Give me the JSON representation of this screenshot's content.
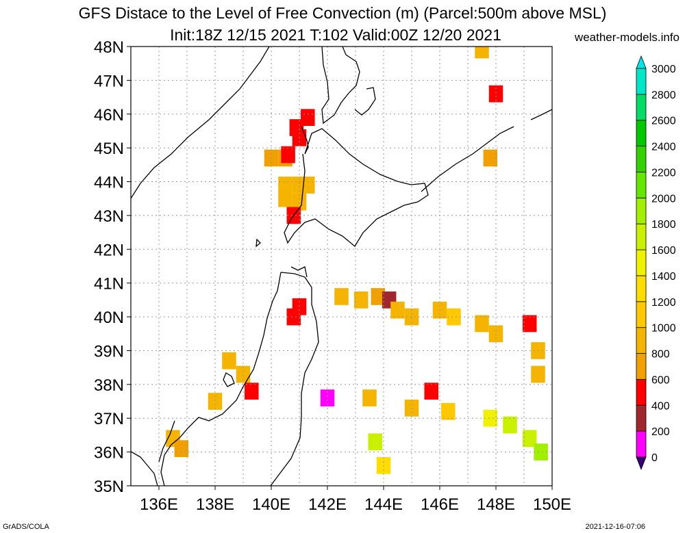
{
  "map": {
    "title_line1": "GFS Distace to the Level of Free Convection (m) (Parcel:500m above MSL)",
    "title_line2": "Init:18Z 12/15 2021 T:102 Valid:00Z 12/20 2021",
    "credit": "weather-models.info",
    "footer_left": "GrADS/COLA",
    "footer_right": "2021-12-16-07:06",
    "region": "Northern Japan / Hokkaido / Sakhalin",
    "projection": "lat-lon",
    "lon_range": [
      135,
      150
    ],
    "lat_range": [
      35,
      48
    ],
    "lon_ticks": [
      "136E",
      "138E",
      "140E",
      "142E",
      "144E",
      "146E",
      "148E",
      "150E"
    ],
    "lat_ticks": [
      "35N",
      "36N",
      "37N",
      "38N",
      "39N",
      "40N",
      "41N",
      "42N",
      "43N",
      "44N",
      "45N",
      "46N",
      "47N",
      "48N"
    ]
  },
  "colorbar": {
    "labels": [
      "0",
      "200",
      "400",
      "600",
      "800",
      "1000",
      "1200",
      "1400",
      "1600",
      "1800",
      "2000",
      "2200",
      "2400",
      "2600",
      "2800",
      "3000"
    ],
    "colors": [
      "#3a0070",
      "#ff00ff",
      "#a0282d",
      "#ff0000",
      "#f0a000",
      "#f5b400",
      "#ffc800",
      "#ffdc00",
      "#f0f000",
      "#c8f000",
      "#a0f000",
      "#64e600",
      "#32d200",
      "#00c800",
      "#00dc64",
      "#00e6c8",
      "#00e6e6"
    ]
  },
  "chart_data": {
    "type": "heatmap",
    "variable": "Distace to the Level of Free Convection (m)",
    "units": "m",
    "cells": [
      {
        "lon": 140.0,
        "lat": 44.7,
        "v": 700
      },
      {
        "lon": 140.5,
        "lat": 44.7,
        "v": 650
      },
      {
        "lon": 140.6,
        "lat": 44.8,
        "v": 500
      },
      {
        "lon": 140.5,
        "lat": 43.9,
        "v": 900
      },
      {
        "lon": 141.0,
        "lat": 43.9,
        "v": 900
      },
      {
        "lon": 141.3,
        "lat": 43.9,
        "v": 850
      },
      {
        "lon": 140.5,
        "lat": 43.5,
        "v": 900
      },
      {
        "lon": 141.0,
        "lat": 43.4,
        "v": 850
      },
      {
        "lon": 140.8,
        "lat": 43.0,
        "v": 500
      },
      {
        "lon": 141.0,
        "lat": 45.3,
        "v": 400
      },
      {
        "lon": 140.9,
        "lat": 45.6,
        "v": 450
      },
      {
        "lon": 141.3,
        "lat": 45.9,
        "v": 550
      },
      {
        "lon": 141.0,
        "lat": 40.3,
        "v": 400
      },
      {
        "lon": 140.8,
        "lat": 40.0,
        "v": 450
      },
      {
        "lon": 142.5,
        "lat": 40.6,
        "v": 900
      },
      {
        "lon": 143.2,
        "lat": 40.5,
        "v": 900
      },
      {
        "lon": 143.8,
        "lat": 40.6,
        "v": 700
      },
      {
        "lon": 144.2,
        "lat": 40.5,
        "v": 300
      },
      {
        "lon": 144.5,
        "lat": 40.2,
        "v": 900
      },
      {
        "lon": 145.0,
        "lat": 40.0,
        "v": 850
      },
      {
        "lon": 146.0,
        "lat": 40.2,
        "v": 950
      },
      {
        "lon": 146.5,
        "lat": 40.0,
        "v": 1000
      },
      {
        "lon": 147.5,
        "lat": 39.8,
        "v": 950
      },
      {
        "lon": 148.0,
        "lat": 39.5,
        "v": 900
      },
      {
        "lon": 149.2,
        "lat": 39.8,
        "v": 550
      },
      {
        "lon": 149.5,
        "lat": 39.0,
        "v": 900
      },
      {
        "lon": 149.5,
        "lat": 38.3,
        "v": 950
      },
      {
        "lon": 138.5,
        "lat": 38.7,
        "v": 900
      },
      {
        "lon": 139.0,
        "lat": 38.3,
        "v": 900
      },
      {
        "lon": 139.3,
        "lat": 37.8,
        "v": 450
      },
      {
        "lon": 138.0,
        "lat": 37.5,
        "v": 900
      },
      {
        "lon": 136.5,
        "lat": 36.4,
        "v": 950
      },
      {
        "lon": 136.8,
        "lat": 36.1,
        "v": 600
      },
      {
        "lon": 143.5,
        "lat": 37.6,
        "v": 800
      },
      {
        "lon": 145.0,
        "lat": 37.3,
        "v": 900
      },
      {
        "lon": 145.7,
        "lat": 37.8,
        "v": 450
      },
      {
        "lon": 146.3,
        "lat": 37.2,
        "v": 1000
      },
      {
        "lon": 147.8,
        "lat": 37.0,
        "v": 1500
      },
      {
        "lon": 148.5,
        "lat": 36.8,
        "v": 1650
      },
      {
        "lon": 149.2,
        "lat": 36.4,
        "v": 1750
      },
      {
        "lon": 149.6,
        "lat": 36.0,
        "v": 1800
      },
      {
        "lon": 143.7,
        "lat": 36.3,
        "v": 1750
      },
      {
        "lon": 144.0,
        "lat": 35.6,
        "v": 1300
      },
      {
        "lon": 142.0,
        "lat": 37.6,
        "v": 150
      },
      {
        "lon": 148.0,
        "lat": 46.6,
        "v": 550
      },
      {
        "lon": 147.8,
        "lat": 44.7,
        "v": 750
      },
      {
        "lon": 147.5,
        "lat": 47.9,
        "v": 900
      }
    ]
  }
}
